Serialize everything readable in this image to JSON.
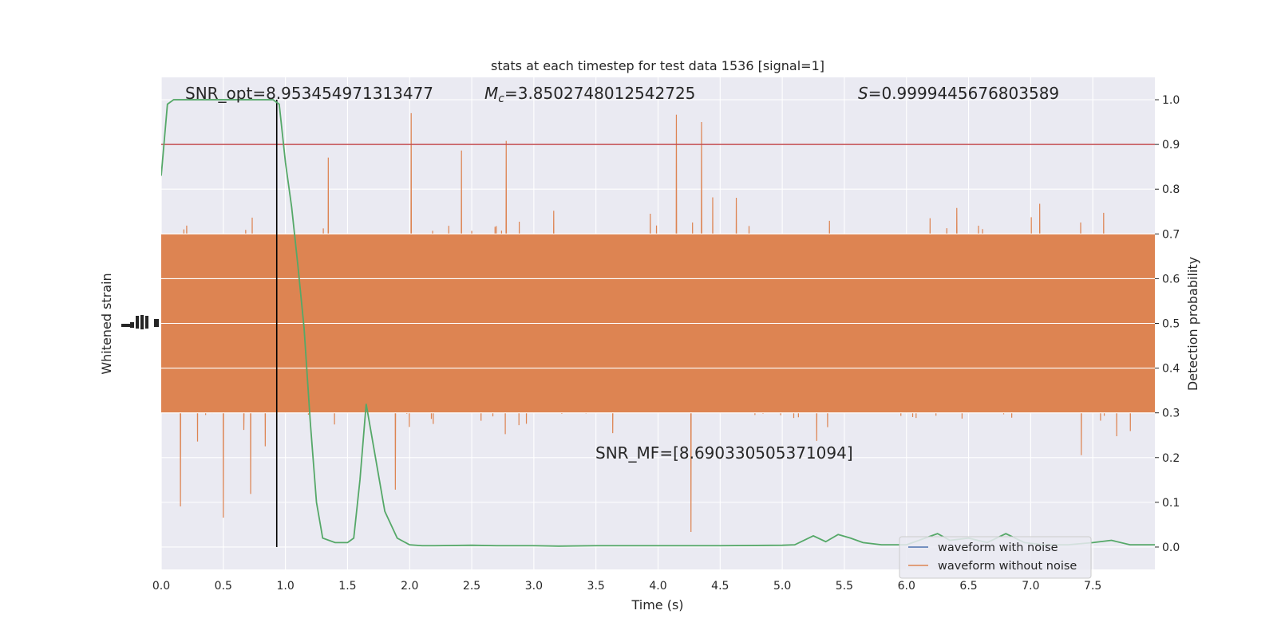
{
  "chart_data": {
    "type": "line",
    "title": "stats at each timestep for test data 1536 [signal=1]",
    "xlabel": "Time (s)",
    "ylabel_left": "Whitened strain",
    "ylabel_right": "Detection probability",
    "xlim": [
      0.0,
      8.0
    ],
    "ylim_right": [
      -0.05,
      1.05
    ],
    "x_ticks": [
      "0.0",
      "0.5",
      "1.0",
      "1.5",
      "2.0",
      "2.5",
      "3.0",
      "3.5",
      "4.0",
      "4.5",
      "5.0",
      "5.5",
      "6.0",
      "6.5",
      "7.0",
      "7.5"
    ],
    "y_ticks_right": [
      "0.0",
      "0.1",
      "0.2",
      "0.3",
      "0.4",
      "0.5",
      "0.6",
      "0.7",
      "0.8",
      "0.9",
      "1.0"
    ],
    "grid": true,
    "legend_position": "lower-right",
    "annotations": {
      "snr_opt": "SNR_opt=8.953454971313477",
      "mc_symbol": "M",
      "mc_sub": "c",
      "mc_value": "=3.8502748012542725",
      "s_symbol": "S",
      "s_value": "=0.9999445676803589",
      "snr_mf": "SNR_MF=[8.690330505371094]"
    },
    "threshold": {
      "value": 0.9,
      "color": "#c44e52"
    },
    "merger_time": 0.93,
    "series": [
      {
        "name": "waveform with noise",
        "color": "#4c72b0",
        "note_values": "rendered hidden behind orange trace; amplitude band approx same as noise-free trace"
      },
      {
        "name": "waveform without noise",
        "color": "#dd8452",
        "band_center": 0.5,
        "band_core_halfwidth": 0.2,
        "spike_max": 1.0,
        "spike_min": 0.0
      },
      {
        "name": "",
        "color": "#55a868",
        "x": [
          0.0,
          0.05,
          0.1,
          0.15,
          0.2,
          0.3,
          0.4,
          0.5,
          0.6,
          0.7,
          0.8,
          0.85,
          0.9,
          0.95,
          1.0,
          1.05,
          1.1,
          1.15,
          1.2,
          1.25,
          1.3,
          1.4,
          1.5,
          1.55,
          1.6,
          1.65,
          1.7,
          1.75,
          1.8,
          1.9,
          2.0,
          2.1,
          2.2,
          2.5,
          2.7,
          3.0,
          3.2,
          3.5,
          4.0,
          4.5,
          5.0,
          5.1,
          5.25,
          5.35,
          5.45,
          5.55,
          5.65,
          5.8,
          6.0,
          6.15,
          6.25,
          6.35,
          6.5,
          6.65,
          6.8,
          6.95,
          7.1,
          7.3,
          7.5,
          7.65,
          7.8,
          8.0
        ],
        "values": [
          0.83,
          0.99,
          1.0,
          1.0,
          1.0,
          1.0,
          1.0,
          1.0,
          1.0,
          1.0,
          1.0,
          1.0,
          1.0,
          0.99,
          0.86,
          0.76,
          0.63,
          0.49,
          0.28,
          0.1,
          0.02,
          0.01,
          0.01,
          0.02,
          0.15,
          0.32,
          0.24,
          0.16,
          0.08,
          0.02,
          0.005,
          0.003,
          0.003,
          0.004,
          0.003,
          0.003,
          0.002,
          0.003,
          0.003,
          0.003,
          0.004,
          0.005,
          0.025,
          0.012,
          0.028,
          0.02,
          0.01,
          0.005,
          0.005,
          0.02,
          0.03,
          0.015,
          0.02,
          0.01,
          0.03,
          0.01,
          0.005,
          0.005,
          0.01,
          0.015,
          0.005,
          0.005
        ]
      }
    ]
  }
}
